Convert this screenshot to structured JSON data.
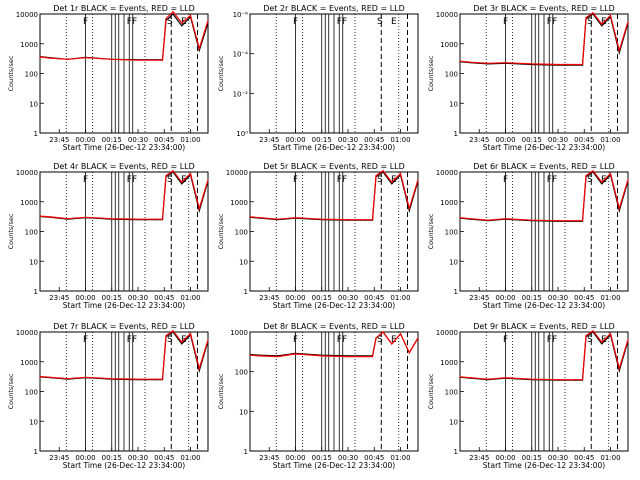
{
  "figure": {
    "start_time_label": "Start Time (26-Dec-12 23:34:00)",
    "ylabel": "Counts/sec",
    "event_markers": [
      {
        "label": "F",
        "time": "23:58"
      },
      {
        "label": "F",
        "time": "00:23"
      },
      {
        "label": "F",
        "time": "00:26"
      },
      {
        "label": "S",
        "time": "00:46"
      },
      {
        "label": "E",
        "time": "00:54"
      }
    ]
  },
  "chart_data": [
    {
      "type": "line",
      "title": "Det 1r BLACK = Events, RED = LLD",
      "x": [
        "23:45",
        "00:00",
        "00:15",
        "00:30",
        "00:45",
        "01:00"
      ],
      "ylim": [
        1,
        10000
      ],
      "yscale": "log",
      "ytick_labels": [
        "1",
        "10",
        "100",
        "1000",
        "10000"
      ],
      "series": [
        {
          "name": "Events",
          "color": "#000000",
          "x": [
            "23:34",
            "23:40",
            "23:50",
            "24:00",
            "24:15",
            "24:30",
            "24:40",
            "24:44",
            "24:46",
            "24:50",
            "24:55",
            "25:00",
            "25:05",
            "25:10"
          ],
          "y": [
            370,
            340,
            300,
            350,
            300,
            290,
            290,
            290,
            6000,
            10000,
            4000,
            8000,
            600,
            5000
          ]
        },
        {
          "name": "LLD",
          "color": "#ff0000",
          "x": [
            "23:34",
            "23:40",
            "23:50",
            "24:00",
            "24:15",
            "24:30",
            "24:40",
            "24:44",
            "24:46",
            "24:50",
            "24:55",
            "25:00",
            "25:05",
            "25:10"
          ],
          "y": [
            360,
            330,
            300,
            340,
            300,
            280,
            280,
            280,
            7000,
            12000,
            5000,
            9000,
            700,
            6000
          ]
        }
      ]
    },
    {
      "type": "line",
      "title": "Det 2r BLACK = Events, RED = LLD",
      "x": [
        "23:45",
        "00:00",
        "00:15",
        "00:30",
        "00:45",
        "01:00"
      ],
      "ylim": [
        1,
        10000
      ],
      "yscale": "log",
      "ytick_labels": [
        "10⁰",
        "10⁻²",
        "10⁻⁴",
        "10⁻⁶"
      ],
      "series": []
    },
    {
      "type": "line",
      "title": "Det 3r BLACK = Events, RED = LLD",
      "x": [
        "23:45",
        "00:00",
        "00:15",
        "00:30",
        "00:45",
        "01:00"
      ],
      "ylim": [
        1,
        10000
      ],
      "yscale": "log",
      "ytick_labels": [
        "1",
        "10",
        "100",
        "1000",
        "10000"
      ],
      "series": [
        {
          "name": "Events",
          "color": "#000000",
          "x": [
            "23:34",
            "23:40",
            "23:50",
            "24:00",
            "24:15",
            "24:30",
            "24:40",
            "24:44",
            "24:46",
            "24:50",
            "24:55",
            "25:00",
            "25:05",
            "25:10"
          ],
          "y": [
            250,
            230,
            210,
            220,
            200,
            190,
            190,
            190,
            7000,
            10000,
            4000,
            8000,
            500,
            5000
          ]
        },
        {
          "name": "LLD",
          "color": "#ff0000",
          "x": [
            "23:34",
            "23:40",
            "23:50",
            "24:00",
            "24:15",
            "24:30",
            "24:40",
            "24:44",
            "24:46",
            "24:50",
            "24:55",
            "25:00",
            "25:05",
            "25:10"
          ],
          "y": [
            260,
            240,
            220,
            230,
            210,
            200,
            200,
            200,
            7500,
            11000,
            4500,
            9000,
            600,
            5500
          ]
        }
      ]
    },
    {
      "type": "line",
      "title": "Det 4r BLACK = Events, RED = LLD",
      "x": [
        "23:45",
        "00:00",
        "00:15",
        "00:30",
        "00:45",
        "01:00"
      ],
      "ylim": [
        1,
        10000
      ],
      "yscale": "log",
      "ytick_labels": [
        "1",
        "10",
        "100",
        "1000",
        "10000"
      ],
      "series": [
        {
          "name": "Events",
          "color": "#000000",
          "x": [
            "23:34",
            "23:40",
            "23:50",
            "24:00",
            "24:15",
            "24:30",
            "24:40",
            "24:44",
            "24:46",
            "24:50",
            "24:55",
            "25:00",
            "25:05",
            "25:10"
          ],
          "y": [
            320,
            300,
            260,
            290,
            260,
            250,
            250,
            250,
            7000,
            10000,
            4000,
            8000,
            500,
            5000
          ]
        },
        {
          "name": "LLD",
          "color": "#ff0000",
          "x": [
            "23:34",
            "23:40",
            "23:50",
            "24:00",
            "24:15",
            "24:30",
            "24:40",
            "24:44",
            "24:46",
            "24:50",
            "24:55",
            "25:00",
            "25:05",
            "25:10"
          ],
          "y": [
            330,
            310,
            270,
            300,
            270,
            260,
            260,
            260,
            7500,
            11000,
            4500,
            9000,
            600,
            5500
          ]
        }
      ]
    },
    {
      "type": "line",
      "title": "Det 5r BLACK = Events, RED = LLD",
      "x": [
        "23:45",
        "00:00",
        "00:15",
        "00:30",
        "00:45",
        "01:00"
      ],
      "ylim": [
        1,
        10000
      ],
      "yscale": "log",
      "ytick_labels": [
        "1",
        "10",
        "100",
        "1000",
        "10000"
      ],
      "series": [
        {
          "name": "Events",
          "color": "#000000",
          "x": [
            "23:34",
            "23:40",
            "23:50",
            "24:00",
            "24:15",
            "24:30",
            "24:40",
            "24:44",
            "24:46",
            "24:50",
            "24:55",
            "25:00",
            "25:05",
            "25:10"
          ],
          "y": [
            300,
            280,
            250,
            280,
            250,
            240,
            240,
            240,
            7000,
            10000,
            4000,
            8000,
            500,
            5000
          ]
        },
        {
          "name": "LLD",
          "color": "#ff0000",
          "x": [
            "23:34",
            "23:40",
            "23:50",
            "24:00",
            "24:15",
            "24:30",
            "24:40",
            "24:44",
            "24:46",
            "24:50",
            "24:55",
            "25:00",
            "25:05",
            "25:10"
          ],
          "y": [
            310,
            290,
            260,
            290,
            260,
            250,
            250,
            250,
            7500,
            11000,
            4500,
            9000,
            600,
            5500
          ]
        }
      ]
    },
    {
      "type": "line",
      "title": "Det 6r BLACK = Events, RED = LLD",
      "x": [
        "23:45",
        "00:00",
        "00:15",
        "00:30",
        "00:45",
        "01:00"
      ],
      "ylim": [
        1,
        10000
      ],
      "yscale": "log",
      "ytick_labels": [
        "1",
        "10",
        "100",
        "1000",
        "10000"
      ],
      "series": [
        {
          "name": "Events",
          "color": "#000000",
          "x": [
            "23:34",
            "23:40",
            "23:50",
            "24:00",
            "24:15",
            "24:30",
            "24:40",
            "24:44",
            "24:46",
            "24:50",
            "24:55",
            "25:00",
            "25:05",
            "25:10"
          ],
          "y": [
            280,
            260,
            230,
            260,
            230,
            220,
            220,
            220,
            7000,
            10000,
            4000,
            8000,
            500,
            5000
          ]
        },
        {
          "name": "LLD",
          "color": "#ff0000",
          "x": [
            "23:34",
            "23:40",
            "23:50",
            "24:00",
            "24:15",
            "24:30",
            "24:40",
            "24:44",
            "24:46",
            "24:50",
            "24:55",
            "25:00",
            "25:05",
            "25:10"
          ],
          "y": [
            290,
            270,
            240,
            270,
            240,
            230,
            230,
            230,
            7500,
            11000,
            4500,
            9000,
            600,
            5500
          ]
        }
      ]
    },
    {
      "type": "line",
      "title": "Det 7r BLACK = Events, RED = LLD",
      "x": [
        "23:45",
        "00:00",
        "00:15",
        "00:30",
        "00:45",
        "01:00"
      ],
      "ylim": [
        1,
        10000
      ],
      "yscale": "log",
      "ytick_labels": [
        "1",
        "10",
        "100",
        "1000",
        "10000"
      ],
      "series": [
        {
          "name": "Events",
          "color": "#000000",
          "x": [
            "23:34",
            "23:40",
            "23:50",
            "24:00",
            "24:15",
            "24:30",
            "24:40",
            "24:44",
            "24:46",
            "24:50",
            "24:55",
            "25:00",
            "25:05",
            "25:10"
          ],
          "y": [
            310,
            290,
            260,
            290,
            260,
            250,
            250,
            250,
            7000,
            10000,
            4000,
            8000,
            500,
            5000
          ]
        },
        {
          "name": "LLD",
          "color": "#ff0000",
          "x": [
            "23:34",
            "23:40",
            "23:50",
            "24:00",
            "24:15",
            "24:30",
            "24:40",
            "24:44",
            "24:46",
            "24:50",
            "24:55",
            "25:00",
            "25:05",
            "25:10"
          ],
          "y": [
            320,
            300,
            270,
            300,
            270,
            260,
            260,
            260,
            7500,
            11000,
            4500,
            9000,
            600,
            5500
          ]
        }
      ]
    },
    {
      "type": "line",
      "title": "Det 8r BLACK = Events, RED = LLD",
      "x": [
        "23:45",
        "00:00",
        "00:15",
        "00:30",
        "00:45",
        "01:00"
      ],
      "ylim": [
        1,
        1000
      ],
      "yscale": "log",
      "ytick_labels": [
        "1",
        "10",
        "100",
        "1000"
      ],
      "series": [
        {
          "name": "Events",
          "color": "#000000",
          "x": [
            "23:34",
            "23:40",
            "23:50",
            "24:00",
            "24:15",
            "24:30",
            "24:40",
            "24:44",
            "24:46",
            "24:50",
            "24:55",
            "25:00",
            "25:05",
            "25:10"
          ],
          "y": [
            270,
            260,
            250,
            290,
            260,
            250,
            250,
            250,
            700,
            1000,
            500,
            900,
            300,
            700
          ]
        },
        {
          "name": "LLD",
          "color": "#ff0000",
          "x": [
            "23:34",
            "23:40",
            "23:50",
            "24:00",
            "24:15",
            "24:30",
            "24:40",
            "24:44",
            "24:46",
            "24:50",
            "24:55",
            "25:00",
            "25:05",
            "25:10"
          ],
          "y": [
            260,
            250,
            240,
            280,
            250,
            240,
            240,
            240,
            700,
            1000,
            500,
            900,
            300,
            700
          ]
        }
      ]
    },
    {
      "type": "line",
      "title": "Det 9r BLACK = Events, RED = LLD",
      "x": [
        "23:45",
        "00:00",
        "00:15",
        "00:30",
        "00:45",
        "01:00"
      ],
      "ylim": [
        1,
        10000
      ],
      "yscale": "log",
      "ytick_labels": [
        "1",
        "10",
        "100",
        "1000",
        "10000"
      ],
      "series": [
        {
          "name": "Events",
          "color": "#000000",
          "x": [
            "23:34",
            "23:40",
            "23:50",
            "24:00",
            "24:15",
            "24:30",
            "24:40",
            "24:44",
            "24:46",
            "24:50",
            "24:55",
            "25:00",
            "25:05",
            "25:10"
          ],
          "y": [
            300,
            280,
            250,
            280,
            250,
            240,
            240,
            240,
            7000,
            10000,
            4000,
            8000,
            500,
            5000
          ]
        },
        {
          "name": "LLD",
          "color": "#ff0000",
          "x": [
            "23:34",
            "23:40",
            "23:50",
            "24:00",
            "24:15",
            "24:30",
            "24:40",
            "24:44",
            "24:46",
            "24:50",
            "24:55",
            "25:00",
            "25:05",
            "25:10"
          ],
          "y": [
            310,
            290,
            260,
            290,
            260,
            250,
            250,
            250,
            7500,
            11000,
            4500,
            9000,
            600,
            5500
          ]
        }
      ]
    }
  ]
}
